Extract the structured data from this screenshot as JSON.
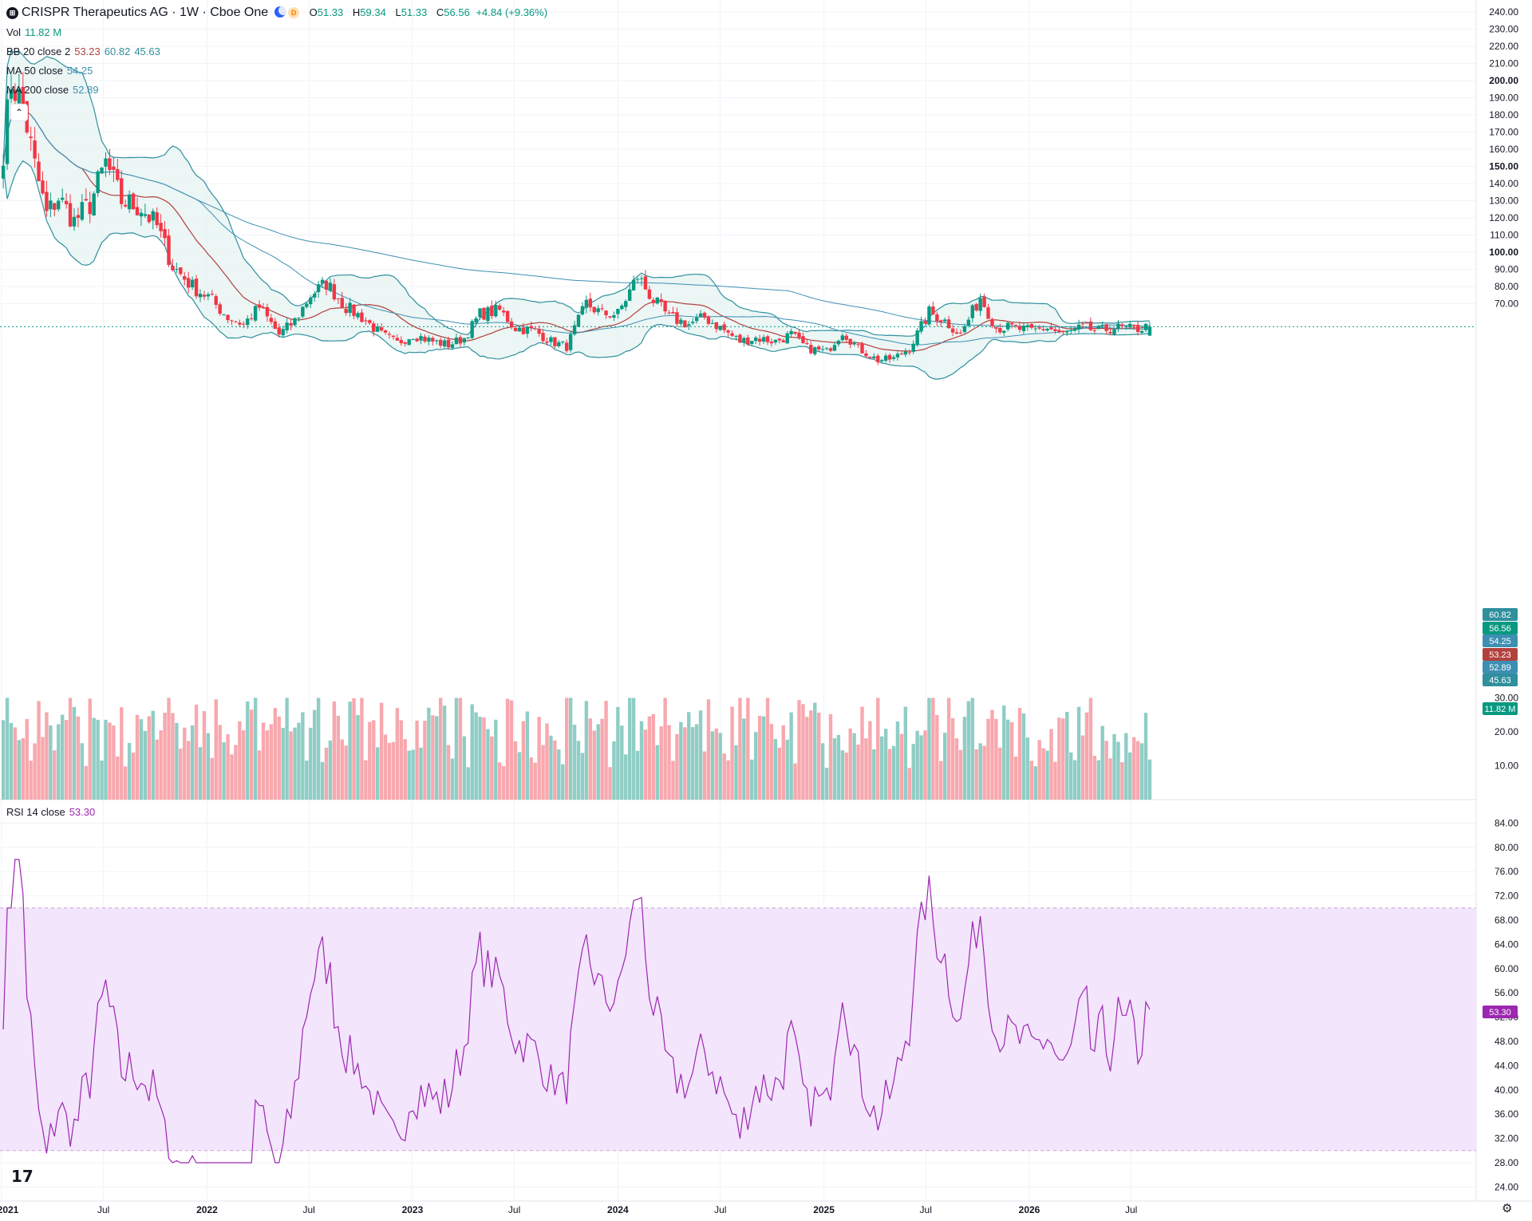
{
  "header": {
    "symbol": "CRISPR Therapeutics AG · 1W · Cboe One",
    "logo_glyph": "⊞",
    "o_label": "O",
    "o_value": "51.33",
    "h_label": "H",
    "h_value": "59.34",
    "l_label": "L",
    "l_value": "51.33",
    "c_label": "C",
    "c_value": "56.56",
    "change": "+4.84 (+9.36%)",
    "badge_d": "D"
  },
  "legends": {
    "vol_label": "Vol",
    "vol_value": "11.82 M",
    "bb_label": "BB 20 close 2",
    "bb_mid": "53.23",
    "bb_upper": "60.82",
    "bb_lower": "45.63",
    "ma50_label": "MA 50 close",
    "ma50_value": "54.25",
    "ma200_label": "MA 200 close",
    "ma200_value": "52.89",
    "rsi_label": "RSI 14 close",
    "rsi_value": "53.30"
  },
  "colors": {
    "up": "#089981",
    "down": "#f23645",
    "vol_up": "#8fcdc5",
    "vol_down": "#f7a8ae",
    "bb_line": "#2f8f9d",
    "bb_fill": "#e6f4f3",
    "ma_mid": "#b2413d",
    "ma50": "#3d8fb2",
    "ma200": "#3d8fb2",
    "rsi_line": "#9c27b0",
    "rsi_band": "#f3e5fc",
    "grid": "#f0f3fa"
  },
  "price_axis": [
    "240.00",
    "230.00",
    "220.00",
    "210.00",
    "200.00",
    "190.00",
    "180.00",
    "170.00",
    "160.00",
    "150.00",
    "140.00",
    "130.00",
    "120.00",
    "110.00",
    "100.00",
    "90.00",
    "80.00",
    "70.00"
  ],
  "volume_axis": [
    "30.00",
    "20.00",
    "10.00"
  ],
  "rsi_axis": [
    "84.00",
    "80.00",
    "76.00",
    "72.00",
    "68.00",
    "64.00",
    "60.00",
    "56.00",
    "52.00",
    "48.00",
    "44.00",
    "40.00",
    "36.00",
    "32.00",
    "28.00",
    "24.00"
  ],
  "time_axis": [
    "2021",
    "Jul",
    "2022",
    "Jul",
    "2023",
    "Jul",
    "2024",
    "Jul",
    "2025",
    "Jul",
    "2026",
    "Jul"
  ],
  "price_tags": [
    {
      "text": "60.82",
      "value": 60.82,
      "color": "#2f8f9d"
    },
    {
      "text": "56.56",
      "value": 56.56,
      "color": "#089981"
    },
    {
      "text": "54.25",
      "value": 54.25,
      "color": "#3d8fb2"
    },
    {
      "text": "53.23",
      "value": 53.23,
      "color": "#b2413d"
    },
    {
      "text": "52.89",
      "value": 52.89,
      "color": "#3d8fb2"
    },
    {
      "text": "45.63",
      "value": 45.63,
      "color": "#2f8f9d"
    }
  ],
  "volume_tag": "11.82 M",
  "rsi_tag": "53.30",
  "chart_data": {
    "type": "candlestick",
    "title": "CRISPR Therapeutics AG · 1W · Cboe One",
    "x_range": [
      "2021-01",
      "2026-09"
    ],
    "price_range": [
      24,
      240
    ],
    "rsi_range": [
      24,
      86
    ],
    "rsi_bands": [
      30,
      70
    ],
    "price_anchors": [
      {
        "t": "2021-01-04",
        "close": 160
      },
      {
        "t": "2021-01-18",
        "close": 200
      },
      {
        "t": "2021-02-08",
        "close": 185
      },
      {
        "t": "2021-03-01",
        "close": 150
      },
      {
        "t": "2021-03-22",
        "close": 122
      },
      {
        "t": "2021-04-12",
        "close": 132
      },
      {
        "t": "2021-05-10",
        "close": 118
      },
      {
        "t": "2021-06-07",
        "close": 128
      },
      {
        "t": "2021-07-05",
        "close": 152
      },
      {
        "t": "2021-08-02",
        "close": 130
      },
      {
        "t": "2021-09-06",
        "close": 126
      },
      {
        "t": "2021-10-04",
        "close": 115
      },
      {
        "t": "2021-11-01",
        "close": 92
      },
      {
        "t": "2021-12-06",
        "close": 80
      },
      {
        "t": "2022-01-03",
        "close": 74
      },
      {
        "t": "2022-02-07",
        "close": 62
      },
      {
        "t": "2022-03-07",
        "close": 58
      },
      {
        "t": "2022-04-04",
        "close": 68
      },
      {
        "t": "2022-05-09",
        "close": 52
      },
      {
        "t": "2022-06-06",
        "close": 60
      },
      {
        "t": "2022-07-04",
        "close": 75
      },
      {
        "t": "2022-08-01",
        "close": 82
      },
      {
        "t": "2022-09-05",
        "close": 68
      },
      {
        "t": "2022-10-03",
        "close": 62
      },
      {
        "t": "2022-11-07",
        "close": 52
      },
      {
        "t": "2022-12-05",
        "close": 47
      },
      {
        "t": "2023-01-02",
        "close": 52
      },
      {
        "t": "2023-02-06",
        "close": 48
      },
      {
        "t": "2023-03-06",
        "close": 46
      },
      {
        "t": "2023-04-03",
        "close": 50
      },
      {
        "t": "2023-05-01",
        "close": 64
      },
      {
        "t": "2023-06-05",
        "close": 66
      },
      {
        "t": "2023-07-03",
        "close": 56
      },
      {
        "t": "2023-08-07",
        "close": 54
      },
      {
        "t": "2023-09-04",
        "close": 48
      },
      {
        "t": "2023-10-02",
        "close": 45
      },
      {
        "t": "2023-11-06",
        "close": 70
      },
      {
        "t": "2023-12-04",
        "close": 64
      },
      {
        "t": "2024-01-01",
        "close": 64
      },
      {
        "t": "2024-02-05",
        "close": 86
      },
      {
        "t": "2024-03-04",
        "close": 72
      },
      {
        "t": "2024-04-01",
        "close": 62
      },
      {
        "t": "2024-05-06",
        "close": 58
      },
      {
        "t": "2024-06-03",
        "close": 62
      },
      {
        "t": "2024-07-01",
        "close": 56
      },
      {
        "t": "2024-08-05",
        "close": 48
      },
      {
        "t": "2024-09-02",
        "close": 50
      },
      {
        "t": "2024-10-07",
        "close": 48
      },
      {
        "t": "2024-11-04",
        "close": 52
      },
      {
        "t": "2024-12-02",
        "close": 44
      },
      {
        "t": "2025-01-06",
        "close": 42
      },
      {
        "t": "2025-02-03",
        "close": 54
      },
      {
        "t": "2025-03-03",
        "close": 44
      },
      {
        "t": "2025-04-07",
        "close": 37
      },
      {
        "t": "2025-05-05",
        "close": 38
      },
      {
        "t": "2025-06-02",
        "close": 44
      },
      {
        "t": "2025-07-07",
        "close": 65
      },
      {
        "t": "2025-08-04",
        "close": 60
      },
      {
        "t": "2025-09-01",
        "close": 52
      },
      {
        "t": "2025-10-06",
        "close": 74
      },
      {
        "t": "2025-11-03",
        "close": 56
      },
      {
        "t": "2025-12-01",
        "close": 56
      },
      {
        "t": "2026-01-05",
        "close": 54
      },
      {
        "t": "2026-02-02",
        "close": 56
      },
      {
        "t": "2026-03-02",
        "close": 52
      },
      {
        "t": "2026-04-06",
        "close": 56
      },
      {
        "t": "2026-05-04",
        "close": 54
      },
      {
        "t": "2026-06-01",
        "close": 56
      },
      {
        "t": "2026-07-06",
        "close": 55
      },
      {
        "t": "2026-08-03",
        "close": 56.56
      }
    ],
    "last_bar": {
      "open": 51.33,
      "high": 59.34,
      "low": 51.33,
      "close": 56.56,
      "change": 4.84,
      "change_pct": 9.36,
      "volume_m": 11.82
    },
    "indicators": {
      "bollinger": {
        "period": 20,
        "stddev": 2,
        "mid": 53.23,
        "upper": 60.82,
        "lower": 45.63
      },
      "ma50": 54.25,
      "ma200": 52.89,
      "rsi14": 53.3
    }
  }
}
